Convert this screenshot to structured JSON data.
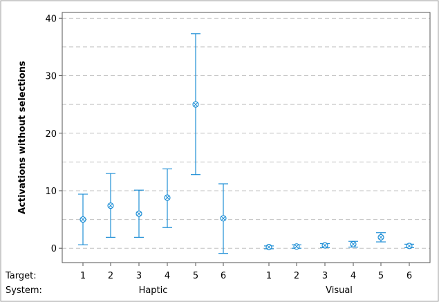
{
  "chart_data": {
    "type": "scatter",
    "subtype": "interval-plot",
    "ylabel": "Activations without selections",
    "ylim": [
      -2.5,
      41
    ],
    "yticks": [
      0,
      10,
      20,
      30,
      40
    ],
    "grid": true,
    "grid_style": "dashed horizontal",
    "row_labels": {
      "target": "Target:",
      "system": "System:"
    },
    "groups": [
      {
        "name": "Haptic",
        "targets": [
          "1",
          "2",
          "3",
          "4",
          "5",
          "6"
        ],
        "mean": [
          5.0,
          7.4,
          6.0,
          8.8,
          25.0,
          5.2
        ],
        "lower": [
          0.6,
          1.9,
          1.9,
          3.6,
          12.8,
          -0.9
        ],
        "upper": [
          9.4,
          13.0,
          10.1,
          13.8,
          37.3,
          11.2
        ]
      },
      {
        "name": "Visual",
        "targets": [
          "1",
          "2",
          "3",
          "4",
          "5",
          "6"
        ],
        "mean": [
          0.2,
          0.3,
          0.5,
          0.7,
          1.9,
          0.4
        ],
        "lower": [
          -0.1,
          0.0,
          0.1,
          0.2,
          1.1,
          0.1
        ],
        "upper": [
          0.4,
          0.6,
          0.8,
          1.2,
          2.7,
          0.7
        ]
      }
    ],
    "color": "#1f8fd6",
    "grid_color": "#c0c0c0"
  }
}
